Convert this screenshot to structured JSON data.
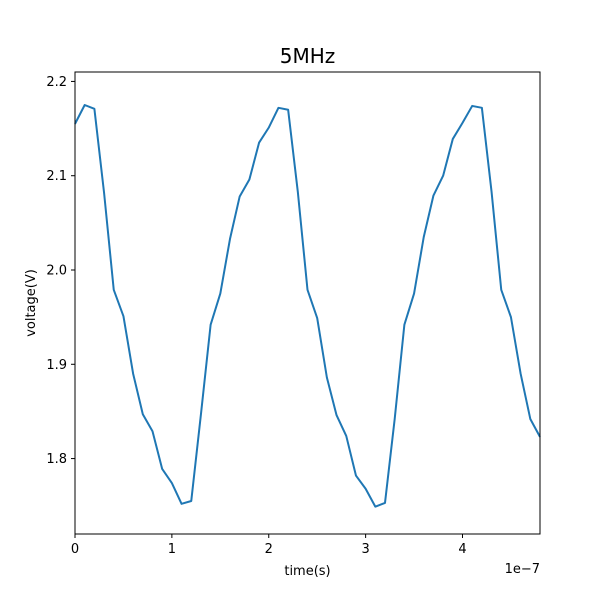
{
  "chart_data": {
    "type": "line",
    "title": "5MHz",
    "xlabel": "time(s)",
    "ylabel": "voltage(V)",
    "x_offset_label": "1e−7",
    "x_unit_multiplier": 1e-07,
    "xlim": [
      0,
      4.8
    ],
    "ylim": [
      1.72,
      2.21
    ],
    "x_ticks": [
      0,
      1,
      2,
      3,
      4
    ],
    "x_tick_labels": [
      "0",
      "1",
      "2",
      "3",
      "4"
    ],
    "y_ticks": [
      1.8,
      1.9,
      2.0,
      2.1,
      2.2
    ],
    "y_tick_labels": [
      "1.8",
      "1.9",
      "2.0",
      "2.1",
      "2.2"
    ],
    "grid": false,
    "line_color": "#1f77b4",
    "series": [
      {
        "x": [
          0.0,
          0.1,
          0.2,
          0.3,
          0.4,
          0.5,
          0.6,
          0.7,
          0.8,
          0.9,
          1.0,
          1.1,
          1.2,
          1.3,
          1.4,
          1.5,
          1.6,
          1.7,
          1.8,
          1.9,
          2.0,
          2.1,
          2.2,
          2.3,
          2.4,
          2.5,
          2.6,
          2.7,
          2.8,
          2.9,
          3.0,
          3.1,
          3.2,
          3.3,
          3.4,
          3.5,
          3.6,
          3.7,
          3.8,
          3.9,
          4.0,
          4.1,
          4.2,
          4.3,
          4.4,
          4.5,
          4.6,
          4.7,
          4.8
        ],
        "y": [
          2.155,
          2.175,
          2.171,
          2.082,
          1.979,
          1.951,
          1.89,
          1.847,
          1.829,
          1.789,
          1.774,
          1.752,
          1.755,
          1.847,
          1.942,
          1.975,
          2.033,
          2.078,
          2.096,
          2.135,
          2.151,
          2.172,
          2.17,
          2.083,
          1.979,
          1.949,
          1.886,
          1.846,
          1.824,
          1.782,
          1.768,
          1.749,
          1.753,
          1.842,
          1.942,
          1.975,
          2.035,
          2.079,
          2.1,
          2.139,
          2.156,
          2.174,
          2.172,
          2.083,
          1.979,
          1.95,
          1.89,
          1.842,
          1.823
        ]
      }
    ]
  }
}
